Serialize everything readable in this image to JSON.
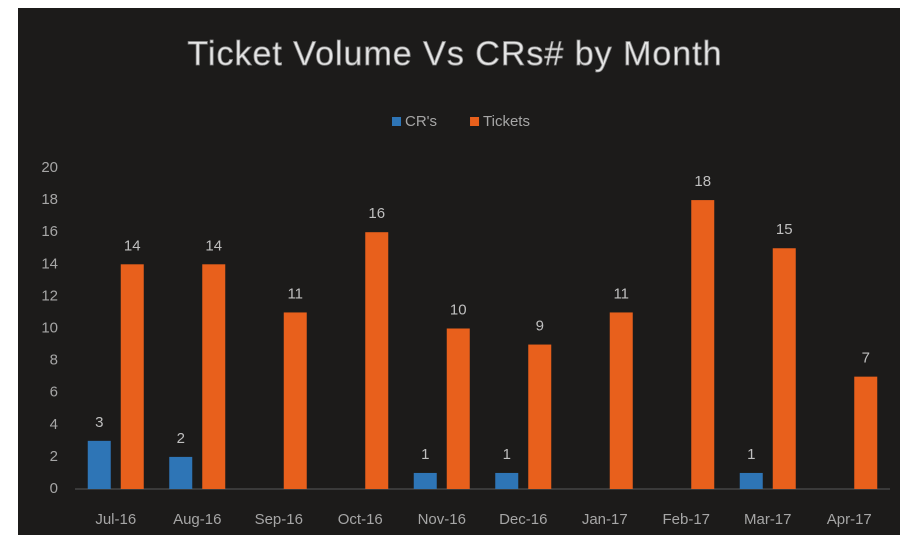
{
  "chart_data": {
    "type": "bar",
    "title": "Ticket Volume Vs CRs# by Month",
    "categories": [
      "Jul-16",
      "Aug-16",
      "Sep-16",
      "Oct-16",
      "Nov-16",
      "Dec-16",
      "Jan-17",
      "Feb-17",
      "Mar-17",
      "Apr-17"
    ],
    "series": [
      {
        "name": "CR's",
        "color": "#2e75b6",
        "values": [
          3,
          2,
          null,
          null,
          1,
          1,
          null,
          null,
          1,
          null
        ]
      },
      {
        "name": "Tickets",
        "color": "#e8601c",
        "values": [
          14,
          14,
          11,
          16,
          10,
          9,
          11,
          18,
          15,
          7
        ]
      }
    ],
    "ylim": [
      0,
      20
    ],
    "yticks": [
      0,
      2,
      4,
      6,
      8,
      10,
      12,
      14,
      16,
      18,
      20
    ],
    "legend": "top",
    "grid": false
  }
}
